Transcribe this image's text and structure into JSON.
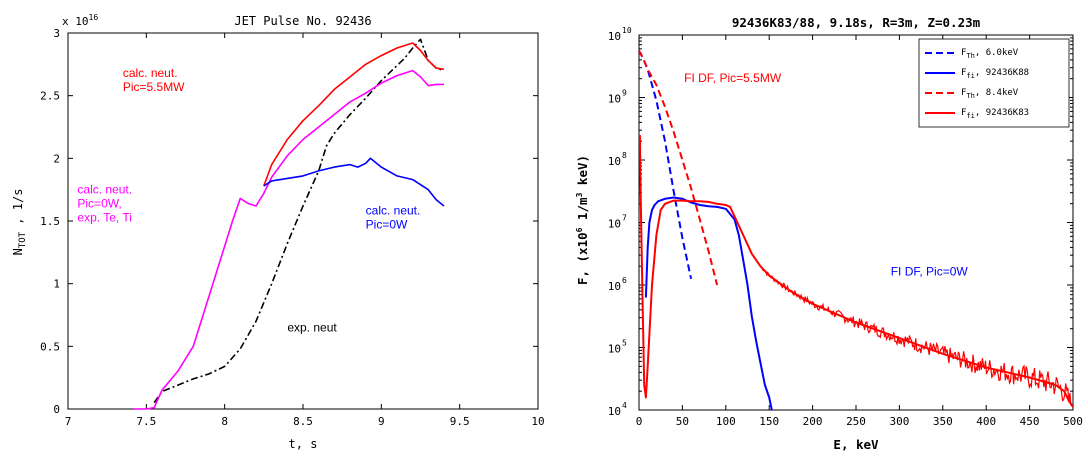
{
  "chart_data": [
    {
      "type": "line",
      "title": "JET Pulse No. 92436",
      "xlabel": "t, s",
      "ylabel": "N_TOT , 1/s",
      "ylabel_parts": {
        "base": "N",
        "sub": "TOT",
        "rest": " , 1/s"
      },
      "exponent_label": "x 10",
      "exponent_power": "16",
      "xlim": [
        7,
        10
      ],
      "ylim": [
        0,
        3
      ],
      "xticks": [
        "7",
        "7.5",
        "8",
        "8.5",
        "9",
        "9.5",
        "10"
      ],
      "yticks": [
        "0",
        "0.5",
        "1",
        "1.5",
        "2",
        "2.5",
        "3"
      ],
      "series": [
        {
          "key": "exp",
          "color": "#000000",
          "dash": "dashdot",
          "x": [
            7.55,
            7.6,
            7.7,
            7.8,
            7.9,
            8.0,
            8.1,
            8.2,
            8.3,
            8.4,
            8.5,
            8.6,
            8.65,
            8.7,
            8.8,
            8.9,
            9.0,
            9.1,
            9.15,
            9.2,
            9.25,
            9.3,
            9.35,
            9.4
          ],
          "y": [
            0.05,
            0.14,
            0.19,
            0.24,
            0.28,
            0.34,
            0.48,
            0.7,
            1.0,
            1.32,
            1.62,
            1.9,
            2.1,
            2.2,
            2.35,
            2.48,
            2.62,
            2.74,
            2.8,
            2.88,
            2.95,
            2.78,
            2.72,
            2.7
          ]
        },
        {
          "key": "pic0_te_ti",
          "color": "#ff00ff",
          "dash": "solid",
          "x": [
            7.42,
            7.5,
            7.55,
            7.6,
            7.7,
            7.8,
            7.9,
            8.0,
            8.05,
            8.1,
            8.15,
            8.2,
            8.25,
            8.3,
            8.4,
            8.5,
            8.6,
            8.7,
            8.8,
            8.9,
            9.0,
            9.1,
            9.2,
            9.25,
            9.3,
            9.35,
            9.4
          ],
          "y": [
            0.0,
            0.0,
            0.01,
            0.15,
            0.3,
            0.5,
            0.9,
            1.3,
            1.5,
            1.68,
            1.64,
            1.62,
            1.72,
            1.85,
            2.02,
            2.15,
            2.25,
            2.35,
            2.45,
            2.52,
            2.6,
            2.66,
            2.7,
            2.65,
            2.58,
            2.59,
            2.59
          ]
        },
        {
          "key": "pic55",
          "color": "#ff0000",
          "dash": "solid",
          "x": [
            8.25,
            8.3,
            8.4,
            8.5,
            8.6,
            8.7,
            8.8,
            8.9,
            9.0,
            9.1,
            9.2,
            9.25,
            9.3,
            9.35,
            9.4
          ],
          "y": [
            1.78,
            1.95,
            2.15,
            2.3,
            2.42,
            2.55,
            2.65,
            2.75,
            2.82,
            2.88,
            2.92,
            2.86,
            2.78,
            2.72,
            2.71
          ]
        },
        {
          "key": "pic0",
          "color": "#0000ff",
          "dash": "solid",
          "x": [
            8.25,
            8.3,
            8.4,
            8.5,
            8.6,
            8.7,
            8.8,
            8.85,
            8.9,
            8.93,
            9.0,
            9.1,
            9.2,
            9.3,
            9.35,
            9.4
          ],
          "y": [
            1.78,
            1.82,
            1.84,
            1.86,
            1.9,
            1.93,
            1.95,
            1.93,
            1.96,
            2.0,
            1.93,
            1.86,
            1.83,
            1.75,
            1.67,
            1.62
          ]
        }
      ],
      "annotations": [
        {
          "lines": [
            "calc. neut.",
            "Pic=5.5MW"
          ],
          "color": "#ff0000",
          "x": 7.35,
          "y": 2.65
        },
        {
          "lines": [
            "calc. neut.",
            "Pic=0W,",
            "exp. Te, Ti"
          ],
          "color": "#ff00ff",
          "x": 7.06,
          "y": 1.72
        },
        {
          "lines": [
            "calc. neut.",
            "Pic=0W"
          ],
          "color": "#0000ff",
          "x": 8.9,
          "y": 1.55
        },
        {
          "lines": [
            "exp. neut"
          ],
          "color": "#000000",
          "x": 8.4,
          "y": 0.62
        }
      ]
    },
    {
      "type": "line",
      "title": "92436K83/88, 9.18s, R=3m, Z=0.23m",
      "xlabel": "E, keV",
      "ylabel_text": "F, (x10",
      "ylabel_text2": " 1/m",
      "ylabel_text3": " keV)",
      "ylabel_sup1": "6",
      "ylabel_sup2": "3",
      "yscale": "log",
      "xlim": [
        0,
        500
      ],
      "ylim": [
        4,
        10
      ],
      "xticks": [
        "0",
        "50",
        "100",
        "150",
        "200",
        "250",
        "300",
        "350",
        "400",
        "450",
        "500"
      ],
      "ytick_base": "10",
      "ytick_powers": [
        "4",
        "5",
        "6",
        "7",
        "8",
        "9",
        "10"
      ],
      "legend_position": "top-right",
      "legend": [
        {
          "base": "F",
          "sub": "Th",
          "label": ", 6.0keV",
          "color": "#0000ff",
          "dash": "dashed"
        },
        {
          "base": "F",
          "sub": "fi",
          "label": ", 92436K88",
          "color": "#0000ff",
          "dash": "solid"
        },
        {
          "base": "F",
          "sub": "Th",
          "label": ", 8.4keV",
          "color": "#ff0000",
          "dash": "dashed"
        },
        {
          "base": "F",
          "sub": "fi",
          "label": ", 92436K83",
          "color": "#ff0000",
          "dash": "solid"
        }
      ],
      "series": [
        {
          "key": "th_blue",
          "color": "#0000ff",
          "dash": "dashed",
          "x": [
            0,
            5,
            10,
            20,
            30,
            40,
            50,
            60
          ],
          "y": [
            9.75,
            9.62,
            9.45,
            8.95,
            8.3,
            7.5,
            6.75,
            6.1
          ]
        },
        {
          "key": "th_red",
          "color": "#ff0000",
          "dash": "dashed",
          "x": [
            0,
            5,
            10,
            20,
            30,
            40,
            50,
            60,
            70,
            80,
            90
          ],
          "y": [
            9.75,
            9.62,
            9.45,
            9.2,
            8.85,
            8.45,
            8.0,
            7.55,
            7.05,
            6.55,
            6.0
          ]
        },
        {
          "key": "fi_blue",
          "color": "#0000ff",
          "dash": "solid",
          "x": [
            8,
            10,
            12,
            15,
            18,
            22,
            30,
            40,
            50,
            60,
            70,
            80,
            90,
            100,
            110,
            115,
            120,
            125,
            130,
            135,
            140,
            145,
            150,
            153
          ],
          "y": [
            5.8,
            6.6,
            7.0,
            7.2,
            7.28,
            7.34,
            7.38,
            7.4,
            7.38,
            7.32,
            7.28,
            7.26,
            7.25,
            7.22,
            7.05,
            6.8,
            6.4,
            6.0,
            5.5,
            5.1,
            4.75,
            4.4,
            4.2,
            4.0
          ]
        },
        {
          "key": "fi_red",
          "color": "#ff0000",
          "dash": "solid",
          "x": [
            1,
            2,
            4,
            6,
            8,
            10,
            15,
            20,
            25,
            30,
            40,
            50,
            60,
            70,
            80,
            90,
            100,
            105,
            110,
            115,
            120,
            125,
            130,
            140,
            150,
            175,
            200,
            250,
            300,
            350,
            400,
            450,
            470,
            480,
            490,
            495,
            500
          ],
          "y": [
            8.4,
            7.4,
            5.8,
            4.4,
            4.2,
            4.7,
            6.0,
            6.8,
            7.2,
            7.3,
            7.35,
            7.35,
            7.34,
            7.34,
            7.33,
            7.3,
            7.28,
            7.25,
            7.1,
            6.95,
            6.8,
            6.65,
            6.5,
            6.3,
            6.15,
            5.9,
            5.7,
            5.4,
            5.15,
            4.9,
            4.68,
            4.52,
            4.44,
            4.4,
            4.3,
            4.15,
            4.05
          ]
        }
      ],
      "annotations": [
        {
          "text": "FI DF, Pic=5.5MW",
          "color": "#ff0000",
          "x": 52,
          "y": 9.25
        },
        {
          "text": "FI DF, Pic=0W",
          "color": "#0000ff",
          "x": 290,
          "y": 6.15
        }
      ]
    }
  ]
}
